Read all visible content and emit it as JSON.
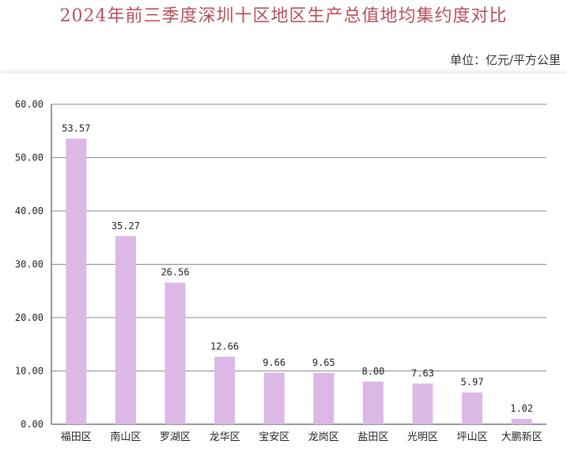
{
  "chart_data": {
    "type": "bar",
    "title": "2024年前三季度深圳十区地区生产总值地均集约度对比",
    "unit_label": "单位：亿元/平方公里",
    "categories": [
      "福田区",
      "南山区",
      "罗湖区",
      "龙华区",
      "宝安区",
      "龙岗区",
      "盐田区",
      "光明区",
      "坪山区",
      "大鹏新区"
    ],
    "values": [
      53.57,
      35.27,
      26.56,
      12.66,
      9.66,
      9.65,
      8.0,
      7.63,
      5.97,
      1.02
    ],
    "data_labels": [
      "53.57",
      "35.27",
      "26.56",
      "12.66",
      "9.66",
      "9.65",
      "8.00",
      "7.63",
      "5.97",
      "1.02"
    ],
    "y_ticks": [
      "0.00",
      "10.00",
      "20.00",
      "30.00",
      "40.00",
      "50.00",
      "60.00"
    ],
    "ylim": [
      0,
      60
    ],
    "grid": true,
    "bar_color": "#dbb8e6"
  }
}
